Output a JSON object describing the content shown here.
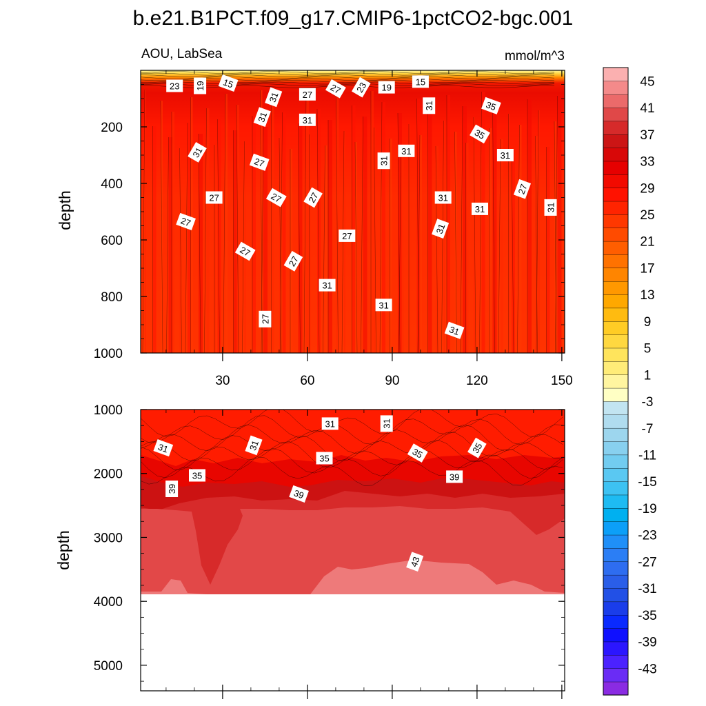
{
  "chart_data": {
    "type": "heatmap",
    "title": "b.e21.B1PCT.f09_g17.CMIP6-1pctCO2-bgc.001",
    "subtitle_left": "AOU, LabSea",
    "subtitle_right": "mmol/m^3",
    "ylabel": "depth",
    "panels": [
      {
        "name": "upper",
        "ylim": [
          1000,
          0
        ],
        "xlim": [
          1,
          151
        ],
        "y_ticks": [
          "200",
          "400",
          "600",
          "800",
          "1000"
        ],
        "y_tick_values": [
          200,
          400,
          600,
          800,
          1000
        ],
        "x_ticks": [
          "30",
          "60",
          "90",
          "120",
          "150"
        ],
        "x_tick_values": [
          30,
          60,
          90,
          120,
          150
        ],
        "contour_labels": [
          {
            "text": "23",
            "x": 13,
            "depth": 55
          },
          {
            "text": "19",
            "x": 22,
            "depth": 55
          },
          {
            "text": "15",
            "x": 32,
            "depth": 45
          },
          {
            "text": "31",
            "x": 48,
            "depth": 95
          },
          {
            "text": "27",
            "x": 60,
            "depth": 85
          },
          {
            "text": "27",
            "x": 70,
            "depth": 65
          },
          {
            "text": "23",
            "x": 79,
            "depth": 60
          },
          {
            "text": "19",
            "x": 88,
            "depth": 60
          },
          {
            "text": "15",
            "x": 100,
            "depth": 40
          },
          {
            "text": "31",
            "x": 103,
            "depth": 125
          },
          {
            "text": "35",
            "x": 125,
            "depth": 125
          },
          {
            "text": "31",
            "x": 44,
            "depth": 165
          },
          {
            "text": "31",
            "x": 60,
            "depth": 175
          },
          {
            "text": "35",
            "x": 121,
            "depth": 225
          },
          {
            "text": "31",
            "x": 21,
            "depth": 290
          },
          {
            "text": "31",
            "x": 95,
            "depth": 285
          },
          {
            "text": "31",
            "x": 130,
            "depth": 300
          },
          {
            "text": "31",
            "x": 87,
            "depth": 320
          },
          {
            "text": "27",
            "x": 43,
            "depth": 325
          },
          {
            "text": "27",
            "x": 136,
            "depth": 420
          },
          {
            "text": "27",
            "x": 27,
            "depth": 450
          },
          {
            "text": "27",
            "x": 49,
            "depth": 450
          },
          {
            "text": "27",
            "x": 62,
            "depth": 450
          },
          {
            "text": "31",
            "x": 108,
            "depth": 450
          },
          {
            "text": "31",
            "x": 121,
            "depth": 490
          },
          {
            "text": "31",
            "x": 146,
            "depth": 485
          },
          {
            "text": "27",
            "x": 17,
            "depth": 535
          },
          {
            "text": "31",
            "x": 107,
            "depth": 560
          },
          {
            "text": "27",
            "x": 74,
            "depth": 585
          },
          {
            "text": "27",
            "x": 38,
            "depth": 640
          },
          {
            "text": "27",
            "x": 55,
            "depth": 675
          },
          {
            "text": "31",
            "x": 67,
            "depth": 760
          },
          {
            "text": "31",
            "x": 87,
            "depth": 830
          },
          {
            "text": "27",
            "x": 45,
            "depth": 880
          },
          {
            "text": "31",
            "x": 112,
            "depth": 920
          }
        ]
      },
      {
        "name": "lower",
        "ylim": [
          5400,
          1000
        ],
        "xlim": [
          1,
          151
        ],
        "y_ticks": [
          "1000",
          "2000",
          "3000",
          "4000",
          "5000"
        ],
        "y_tick_values": [
          1000,
          2000,
          3000,
          4000,
          5000
        ],
        "max_data_depth": 3850,
        "contour_labels": [
          {
            "text": "31",
            "x": 68,
            "depth": 1220
          },
          {
            "text": "31",
            "x": 88,
            "depth": 1220
          },
          {
            "text": "31",
            "x": 9,
            "depth": 1600
          },
          {
            "text": "31",
            "x": 41,
            "depth": 1560
          },
          {
            "text": "35",
            "x": 66,
            "depth": 1760
          },
          {
            "text": "35",
            "x": 99,
            "depth": 1680
          },
          {
            "text": "35",
            "x": 120,
            "depth": 1600
          },
          {
            "text": "35",
            "x": 21,
            "depth": 2030
          },
          {
            "text": "39",
            "x": 112,
            "depth": 2050
          },
          {
            "text": "39",
            "x": 12,
            "depth": 2240
          },
          {
            "text": "39",
            "x": 57,
            "depth": 2320
          },
          {
            "text": "43",
            "x": 98,
            "depth": 3380
          }
        ]
      }
    ],
    "colorbar": {
      "levels": [
        -45,
        -43,
        -41,
        -39,
        -37,
        -35,
        -33,
        -31,
        -29,
        -27,
        -25,
        -23,
        -21,
        -19,
        -17,
        -15,
        -13,
        -11,
        -9,
        -7,
        -5,
        -3,
        -1,
        1,
        3,
        5,
        7,
        9,
        11,
        13,
        15,
        17,
        19,
        21,
        23,
        25,
        27,
        29,
        31,
        33,
        35,
        37,
        39,
        41,
        43,
        45
      ],
      "labels": [
        "45",
        "41",
        "37",
        "33",
        "29",
        "25",
        "21",
        "17",
        "13",
        "9",
        "5",
        "1",
        "-3",
        "-7",
        "-11",
        "-15",
        "-19",
        "-23",
        "-27",
        "-31",
        "-35",
        "-39",
        "-43"
      ],
      "colors": [
        "#8a2be2",
        "#6a2cf5",
        "#4b22ff",
        "#2b16ff",
        "#0f10ff",
        "#0a2aff",
        "#1a3dea",
        "#2250e6",
        "#2a5ee8",
        "#2e6df0",
        "#2b7ef5",
        "#1f8ff8",
        "#0c9ff8",
        "#00b0f0",
        "#1ebbf2",
        "#3dc2f2",
        "#5ac8f2",
        "#72ccf0",
        "#88d0ef",
        "#9dd6ee",
        "#b0dcef",
        "#c2e4f1",
        "#ffffc4",
        "#fff5a0",
        "#ffec78",
        "#ffe45c",
        "#ffd840",
        "#ffcc25",
        "#ffbb10",
        "#ffa800",
        "#ff9800",
        "#ff8500",
        "#ff7200",
        "#ff5e00",
        "#ff4b00",
        "#ff3800",
        "#ff2400",
        "#ff1200",
        "#f20a00",
        "#e60000",
        "#d80808",
        "#cc1515",
        "#d62a2a",
        "#e04848",
        "#eb6a6a",
        "#f48a8a",
        "#fbb0b0"
      ]
    }
  }
}
